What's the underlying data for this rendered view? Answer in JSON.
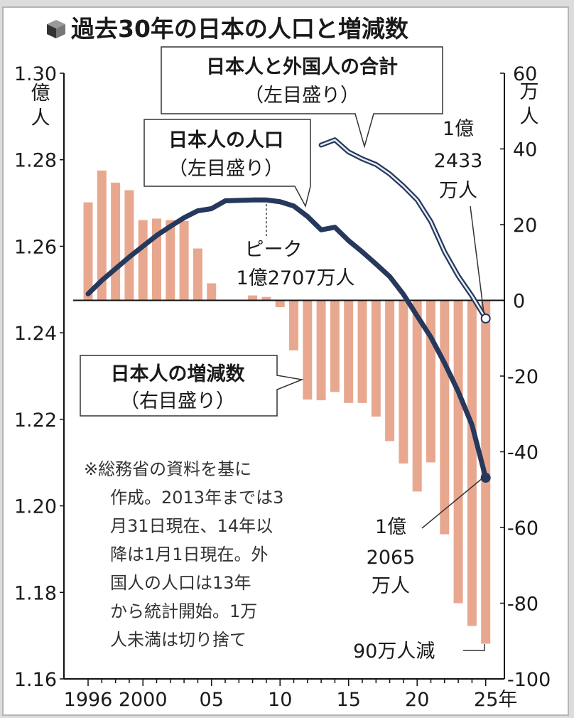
{
  "title": "過去30年の日本の人口と増減数",
  "title_icon": "cube-icon",
  "annotations": {
    "total_box": {
      "line1": "日本人と外国人の合計",
      "line2": "（左目盛り）"
    },
    "japanese_box": {
      "line1": "日本人の人口",
      "line2": "（左目盛り）"
    },
    "change_box": {
      "line1": "日本人の増減数",
      "line2": "（右目盛り）"
    },
    "peak": {
      "line1": "ピーク",
      "line2": "1億2707万人"
    },
    "total_end": {
      "line1": "1億",
      "line2": "2433",
      "line3": "万人"
    },
    "japanese_end": {
      "line1": "1億",
      "line2": "2065",
      "line3": "万人"
    },
    "decrease": "90万人減"
  },
  "note": [
    "※総務省の資料を基に",
    "作成。2013年までは3",
    "月31日現在、14年以",
    "降は1月1日現在。外",
    "国人の人口は13年",
    "から統計開始。1万",
    "人未満は切り捨て"
  ],
  "colors": {
    "bars": "#e8a88f",
    "japanese_line": "#26395c",
    "total_line_outer": "#26395c",
    "total_line_inner": "#e8eef8"
  },
  "chart_data": {
    "type": "bar+line",
    "title": "過去30年の日本の人口と増減数",
    "x": [
      1996,
      1997,
      1998,
      1999,
      2000,
      2001,
      2002,
      2003,
      2004,
      2005,
      2006,
      2007,
      2008,
      2009,
      2010,
      2011,
      2012,
      2013,
      2014,
      2015,
      2016,
      2017,
      2018,
      2019,
      2020,
      2021,
      2022,
      2023,
      2024,
      2025
    ],
    "x_tick_labels": [
      "1996",
      "2000",
      "05",
      "10",
      "15",
      "20",
      "25年"
    ],
    "x_tick_values": [
      1996,
      2000,
      2005,
      2010,
      2015,
      2020,
      2025
    ],
    "left_axis": {
      "unit": "億人",
      "range": [
        1.16,
        1.3
      ],
      "ticks": [
        "1.30",
        "1.28",
        "1.26",
        "1.24",
        "1.22",
        "1.20",
        "1.18",
        "1.16"
      ],
      "unit_chars": [
        "億",
        "人"
      ]
    },
    "right_axis": {
      "unit": "万人",
      "range": [
        -100,
        60
      ],
      "ticks": [
        "60",
        "40",
        "20",
        "0",
        "-20",
        "-40",
        "-60",
        "-80",
        "-100"
      ],
      "unit_chars": [
        "万",
        "人"
      ]
    },
    "series": [
      {
        "name": "日本人の増減数",
        "axis": "right",
        "type": "bar",
        "values": [
          25.9,
          34.3,
          31.1,
          29.1,
          21.2,
          21.6,
          21.2,
          21.0,
          13.7,
          4.5,
          0,
          0,
          1.3,
          0.9,
          -1.8,
          -13.2,
          -26.2,
          -26.4,
          -24.2,
          -27.1,
          -27.1,
          -30.7,
          -37.2,
          -43.1,
          -50.5,
          -42.8,
          -61.8,
          -80.0,
          -86.0,
          -90.7
        ]
      },
      {
        "name": "日本人の人口",
        "axis": "left",
        "type": "line",
        "values": [
          1.249,
          1.2521,
          1.2548,
          1.2575,
          1.26,
          1.2625,
          1.2646,
          1.2666,
          1.2682,
          1.2687,
          1.2705,
          1.2706,
          1.2707,
          1.2707,
          1.2703,
          1.2693,
          1.2669,
          1.2638,
          1.2644,
          1.2613,
          1.2587,
          1.2559,
          1.253,
          1.2489,
          1.2439,
          1.239,
          1.233,
          1.2264,
          1.2187,
          1.2065
        ]
      },
      {
        "name": "日本人と外国人の合計",
        "axis": "left",
        "type": "line",
        "values": [
          null,
          null,
          null,
          null,
          null,
          null,
          null,
          null,
          null,
          null,
          null,
          null,
          null,
          null,
          null,
          null,
          null,
          1.2834,
          1.2846,
          1.2818,
          1.2802,
          1.2789,
          1.2767,
          1.2739,
          1.2707,
          1.2657,
          1.2587,
          1.2531,
          1.2485,
          1.2433
        ]
      }
    ],
    "peak": {
      "year": 2009,
      "value": 1.2707
    },
    "grid": false,
    "legend": "none"
  }
}
